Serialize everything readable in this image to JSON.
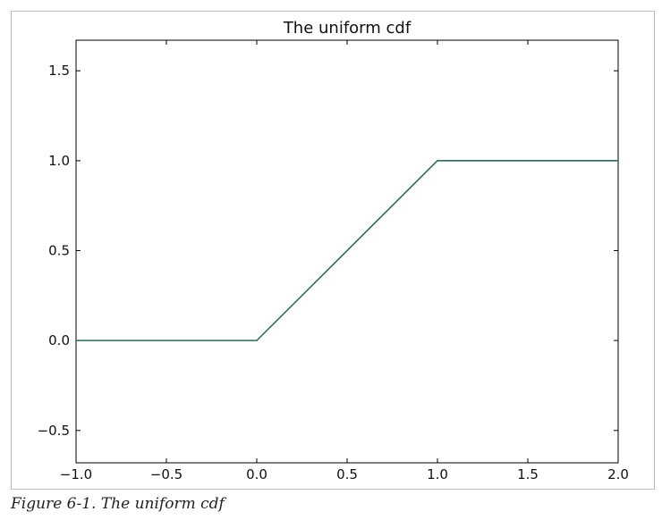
{
  "chart_data": {
    "type": "line",
    "title": "The uniform cdf",
    "xlabel": "",
    "ylabel": "",
    "xlim": [
      -1.0,
      2.0
    ],
    "ylim": [
      -0.68,
      1.67
    ],
    "xticks": [
      -1.0,
      -0.5,
      0.0,
      0.5,
      1.0,
      1.5,
      2.0
    ],
    "xtick_labels": [
      "−1.0",
      "−0.5",
      "0.0",
      "0.5",
      "1.0",
      "1.5",
      "2.0"
    ],
    "yticks": [
      -0.5,
      0.0,
      0.5,
      1.0,
      1.5
    ],
    "ytick_labels": [
      "−0.5",
      "0.0",
      "0.5",
      "1.0",
      "1.5"
    ],
    "grid": false,
    "series": [
      {
        "color": "#2a6e55",
        "x": [
          -1.0,
          0.0,
          1.0,
          2.0
        ],
        "y": [
          0.0,
          0.0,
          1.0,
          1.0
        ]
      }
    ]
  },
  "caption": "Figure 6-1. The uniform cdf"
}
